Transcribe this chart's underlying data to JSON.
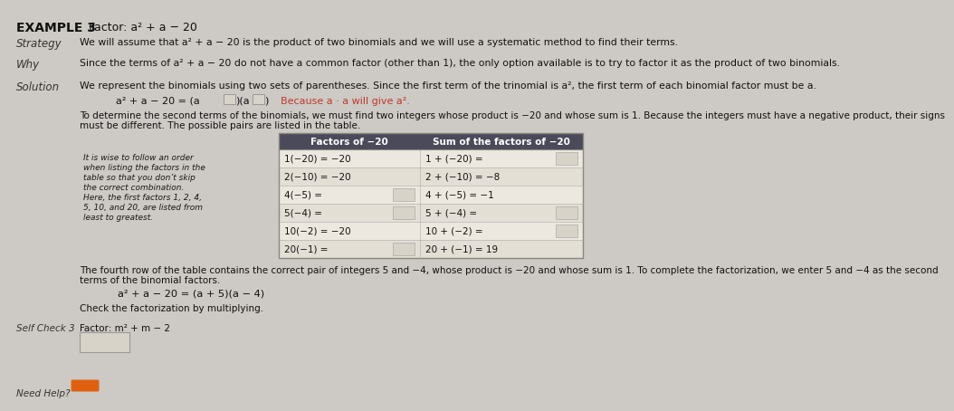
{
  "bg_color": "#cdc9c4",
  "title_bold": "EXAMPLE 3",
  "title_regular": "Factor: a² + a − 20",
  "strategy_label": "Strategy",
  "strategy_text": "We will assume that a² + a − 20 is the product of two binomials and we will use a systematic method to find their terms.",
  "why_label": "Why",
  "why_text": "Since the terms of a² + a − 20 do not have a common factor (other than 1), the only option available is to try to factor it as the product of two binomials.",
  "solution_label": "Solution",
  "solution_text": "We represent the binomials using two sets of parentheses. Since the first term of the trinomial is a², the first term of each binomial factor must be a.",
  "because_text": "Because a · a will give a².",
  "to_determine_line1": "To determine the second terms of the binomials, we must find two integers whose product is −20 and whose sum is 1. Because the integers must have a negative product, their signs",
  "to_determine_line2": "must be different. The possible pairs are listed in the table.",
  "side_note_lines": [
    "It is wise to follow an order",
    "when listing the factors in the",
    "table so that you don’t skip",
    "the correct combination.",
    "Here, the first factors 1, 2, 4,",
    "5, 10, and 20, are listed from",
    "least to greatest."
  ],
  "table_header_col1": "Factors of −20",
  "table_header_col2": "Sum of the factors of −20",
  "table_rows": [
    [
      "1(−20) = −20",
      "1 + (−20) =",
      false,
      true
    ],
    [
      "2(−10) = −20",
      "2 + (−10) = −8",
      false,
      false
    ],
    [
      "4(−5) =",
      "4 + (−5) = −1",
      true,
      false
    ],
    [
      "5(−4) =",
      "5 + (−4) =",
      true,
      true
    ],
    [
      "10(−2) = −20",
      "10 + (−2) =",
      false,
      true
    ],
    [
      "20(−1) =",
      "20 + (−1) = 19",
      true,
      false
    ]
  ],
  "fourth_row_line1": "The fourth row of the table contains the correct pair of integers 5 and −4, whose product is −20 and whose sum is 1. To complete the factorization, we enter 5 and −4 as the second",
  "fourth_row_line2": "terms of the binomial factors.",
  "final_equation": "a² + a − 20 = (a + 5)(a − 4)",
  "check_text": "Check the factorization by multiplying.",
  "self_check_label": "Self Check 3",
  "self_check_factor": "Factor: m² + m − 2",
  "need_help_label": "Need Help?",
  "because_color": "#c0392b",
  "header_bg": "#4a4a5a",
  "row_even_bg": "#ede8df",
  "row_odd_bg": "#e4dfd5",
  "blank_box_color": "#d8d3c8",
  "table_border_color": "#888880"
}
